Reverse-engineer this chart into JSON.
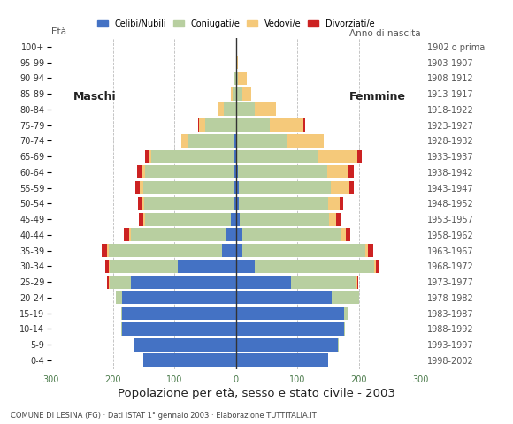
{
  "age_groups": [
    "0-4",
    "5-9",
    "10-14",
    "15-19",
    "20-24",
    "25-29",
    "30-34",
    "35-39",
    "40-44",
    "45-49",
    "50-54",
    "55-59",
    "60-64",
    "65-69",
    "70-74",
    "75-79",
    "80-84",
    "85-89",
    "90-94",
    "95-99",
    "100+"
  ],
  "birth_years": [
    "1998-2002",
    "1993-1997",
    "1988-1992",
    "1983-1987",
    "1978-1982",
    "1973-1977",
    "1968-1972",
    "1963-1967",
    "1958-1962",
    "1953-1957",
    "1948-1952",
    "1943-1947",
    "1938-1942",
    "1933-1937",
    "1928-1932",
    "1923-1927",
    "1918-1922",
    "1913-1917",
    "1908-1912",
    "1903-1907",
    "1902 o prima"
  ],
  "male": {
    "celibe": [
      150,
      165,
      185,
      185,
      185,
      170,
      95,
      22,
      16,
      8,
      4,
      3,
      3,
      2,
      2,
      0,
      0,
      0,
      0,
      0,
      0
    ],
    "coniugato": [
      0,
      2,
      2,
      2,
      10,
      35,
      110,
      185,
      155,
      140,
      145,
      148,
      145,
      135,
      75,
      50,
      20,
      5,
      2,
      0,
      0
    ],
    "vedovo": [
      0,
      0,
      0,
      0,
      0,
      2,
      2,
      3,
      3,
      3,
      3,
      5,
      5,
      5,
      12,
      10,
      8,
      3,
      0,
      0,
      0
    ],
    "divorziato": [
      0,
      0,
      0,
      0,
      0,
      2,
      5,
      8,
      8,
      7,
      7,
      7,
      7,
      5,
      0,
      2,
      0,
      0,
      0,
      0,
      0
    ]
  },
  "female": {
    "nubile": [
      150,
      165,
      175,
      175,
      155,
      90,
      30,
      10,
      10,
      6,
      4,
      4,
      3,
      2,
      2,
      0,
      0,
      0,
      0,
      0,
      0
    ],
    "coniugata": [
      0,
      2,
      2,
      8,
      45,
      105,
      195,
      200,
      160,
      145,
      145,
      150,
      145,
      130,
      80,
      55,
      30,
      10,
      3,
      0,
      0
    ],
    "vedova": [
      0,
      0,
      0,
      0,
      0,
      2,
      3,
      5,
      8,
      12,
      20,
      30,
      35,
      65,
      60,
      55,
      35,
      15,
      15,
      3,
      0
    ],
    "divorziata": [
      0,
      0,
      0,
      0,
      0,
      2,
      5,
      8,
      8,
      8,
      5,
      8,
      8,
      8,
      0,
      2,
      0,
      0,
      0,
      0,
      0
    ]
  },
  "colors": {
    "celibe": "#4472c4",
    "coniugato": "#b8cfa0",
    "vedovo": "#f5c97a",
    "divorziato": "#cc2222"
  },
  "xlim": 300,
  "title": "Popolazione per età, sesso e stato civile - 2003",
  "subtitle": "COMUNE DI LESINA (FG) · Dati ISTAT 1° gennaio 2003 · Elaborazione TUTTITALIA.IT",
  "legend_labels": [
    "Celibi/Nubili",
    "Coniugati/e",
    "Vedovi/e",
    "Divorziati/e"
  ],
  "label_maschi": "Maschi",
  "label_femmine": "Femmine",
  "label_eta": "Età",
  "label_anno": "Anno di nascita",
  "background_color": "#ffffff",
  "grid_color": "#bbbbbb",
  "xtick_color": "#4a7a4a",
  "axis_label_color": "#555555",
  "title_color": "#222222",
  "subtitle_color": "#444444"
}
